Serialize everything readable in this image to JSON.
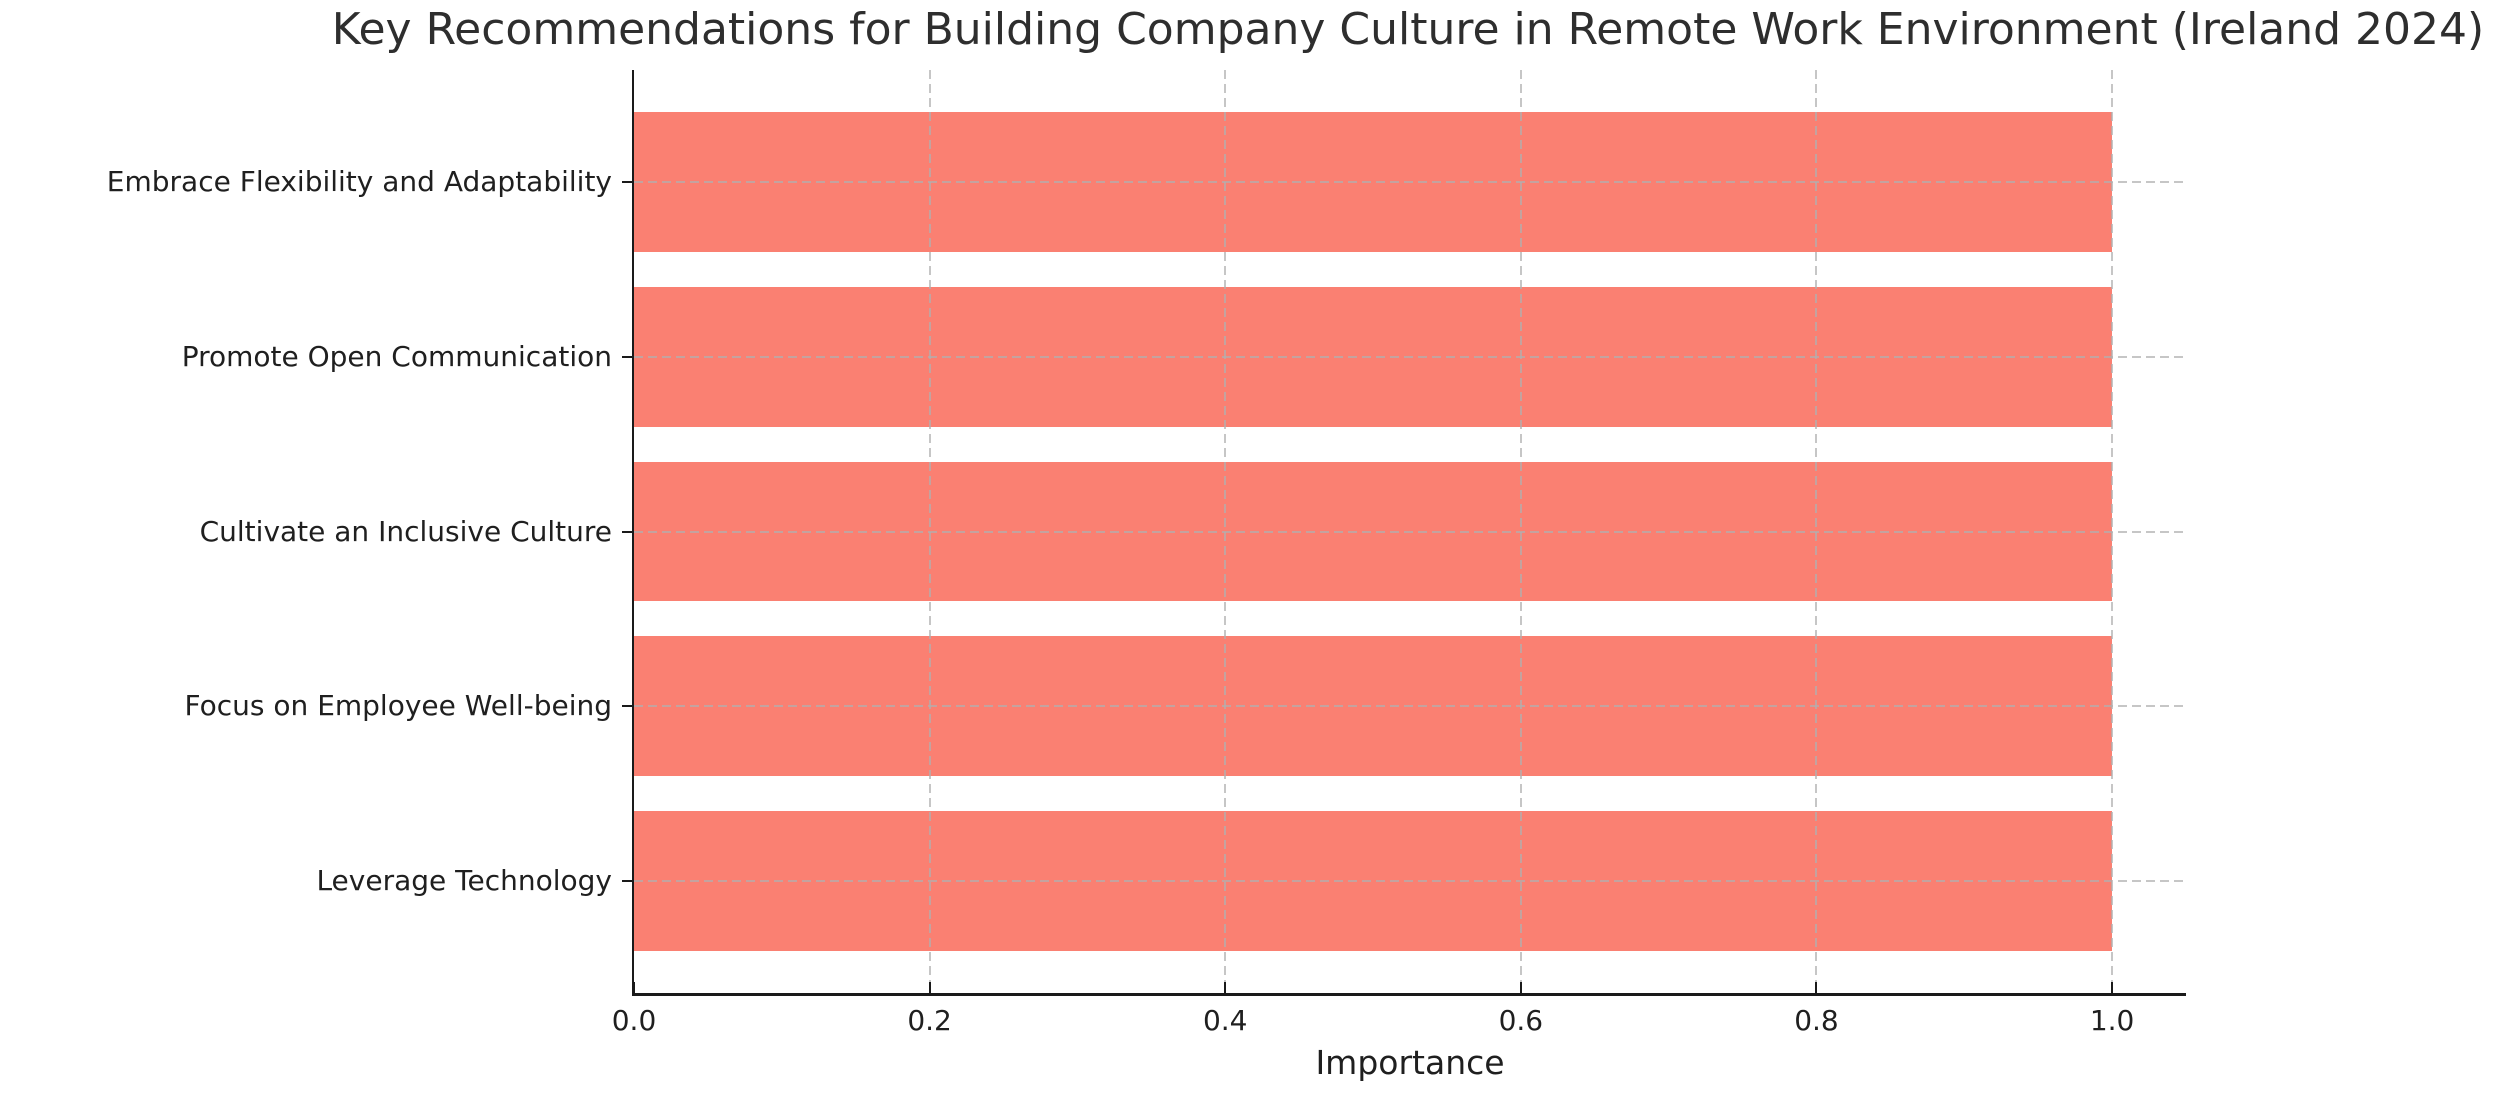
{
  "chart_data": {
    "type": "bar",
    "orientation": "horizontal",
    "title": "Key Recommendations for Building Company Culture in Remote Work Environment (Ireland 2024)",
    "categories": [
      "Embrace Flexibility and Adaptability",
      "Promote Open Communication",
      "Cultivate an Inclusive Culture",
      "Focus on Employee Well-being",
      "Leverage Technology"
    ],
    "values": [
      1.0,
      1.0,
      1.0,
      1.0,
      1.0
    ],
    "xlabel": "Importance",
    "ylabel": "",
    "xlim": [
      0,
      1.05
    ],
    "xticks": [
      0,
      0.2,
      0.4,
      0.6,
      0.8,
      1.0
    ],
    "xtick_labels": [
      "0.0",
      "0.2",
      "0.4",
      "0.6",
      "0.8",
      "1.0"
    ],
    "grid": "dashed gridlines on both axes, drawn above bars",
    "legend": "none",
    "colors": {
      "bar": "#FA8072",
      "grid": "#bdbdbd",
      "spine": "#1a1a1a",
      "text": "#1f1f1f"
    }
  }
}
